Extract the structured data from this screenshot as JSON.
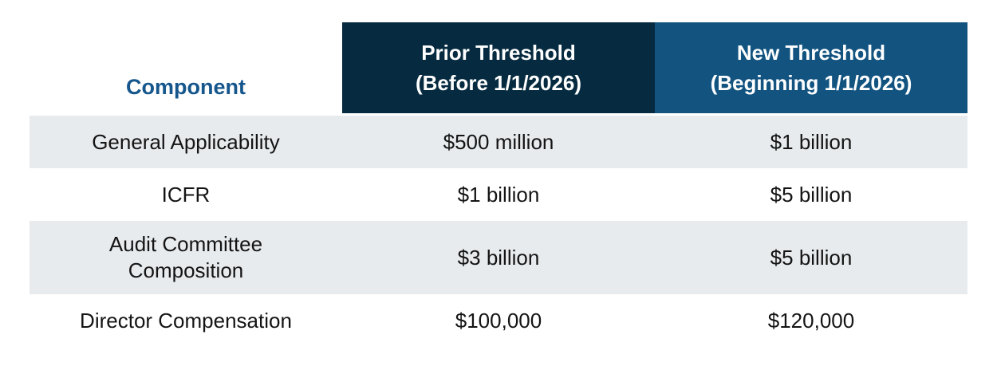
{
  "colors": {
    "navy": "#062B40",
    "blue": "#125380",
    "component_text": "#15568C",
    "row_alt": "#E8EBEE",
    "body_text": "#141414",
    "page_bg": "#FFFFFF"
  },
  "header": {
    "component": "Component",
    "prior": {
      "line1": "Prior Threshold",
      "line2": "(Before 1/1/2026)"
    },
    "new": {
      "line1": "New Threshold",
      "line2": "(Beginning 1/1/2026)"
    }
  },
  "rows": [
    {
      "component": "General Applicability",
      "prior": "$500 million",
      "new": "$1 billion"
    },
    {
      "component": "ICFR",
      "prior": "$1 billion",
      "new": "$5 billion"
    },
    {
      "component": "Audit Committee Composition",
      "prior": "$3 billion",
      "new": "$5 billion"
    },
    {
      "component": "Director Compensation",
      "prior": "$100,000",
      "new": "$120,000"
    }
  ],
  "chart_data": {
    "type": "table",
    "columns": [
      "Component",
      "Prior Threshold (Before 1/1/2026)",
      "New Threshold (Beginning 1/1/2026)"
    ],
    "rows": [
      [
        "General Applicability",
        "$500 million",
        "$1 billion"
      ],
      [
        "ICFR",
        "$1 billion",
        "$5 billion"
      ],
      [
        "Audit Committee Composition",
        "$3 billion",
        "$5 billion"
      ],
      [
        "Director Compensation",
        "$100,000",
        "$120,000"
      ]
    ],
    "layout_hints": {
      "header_style": "col1 plain with blue bold text; col2 dark-navy fill; col3 medium-blue fill; white bold header text",
      "row_striping": "rows 1 and 3 light gray (#E8EBEE), rows 2 and 4 white",
      "alignment": "all cells center-aligned"
    }
  }
}
